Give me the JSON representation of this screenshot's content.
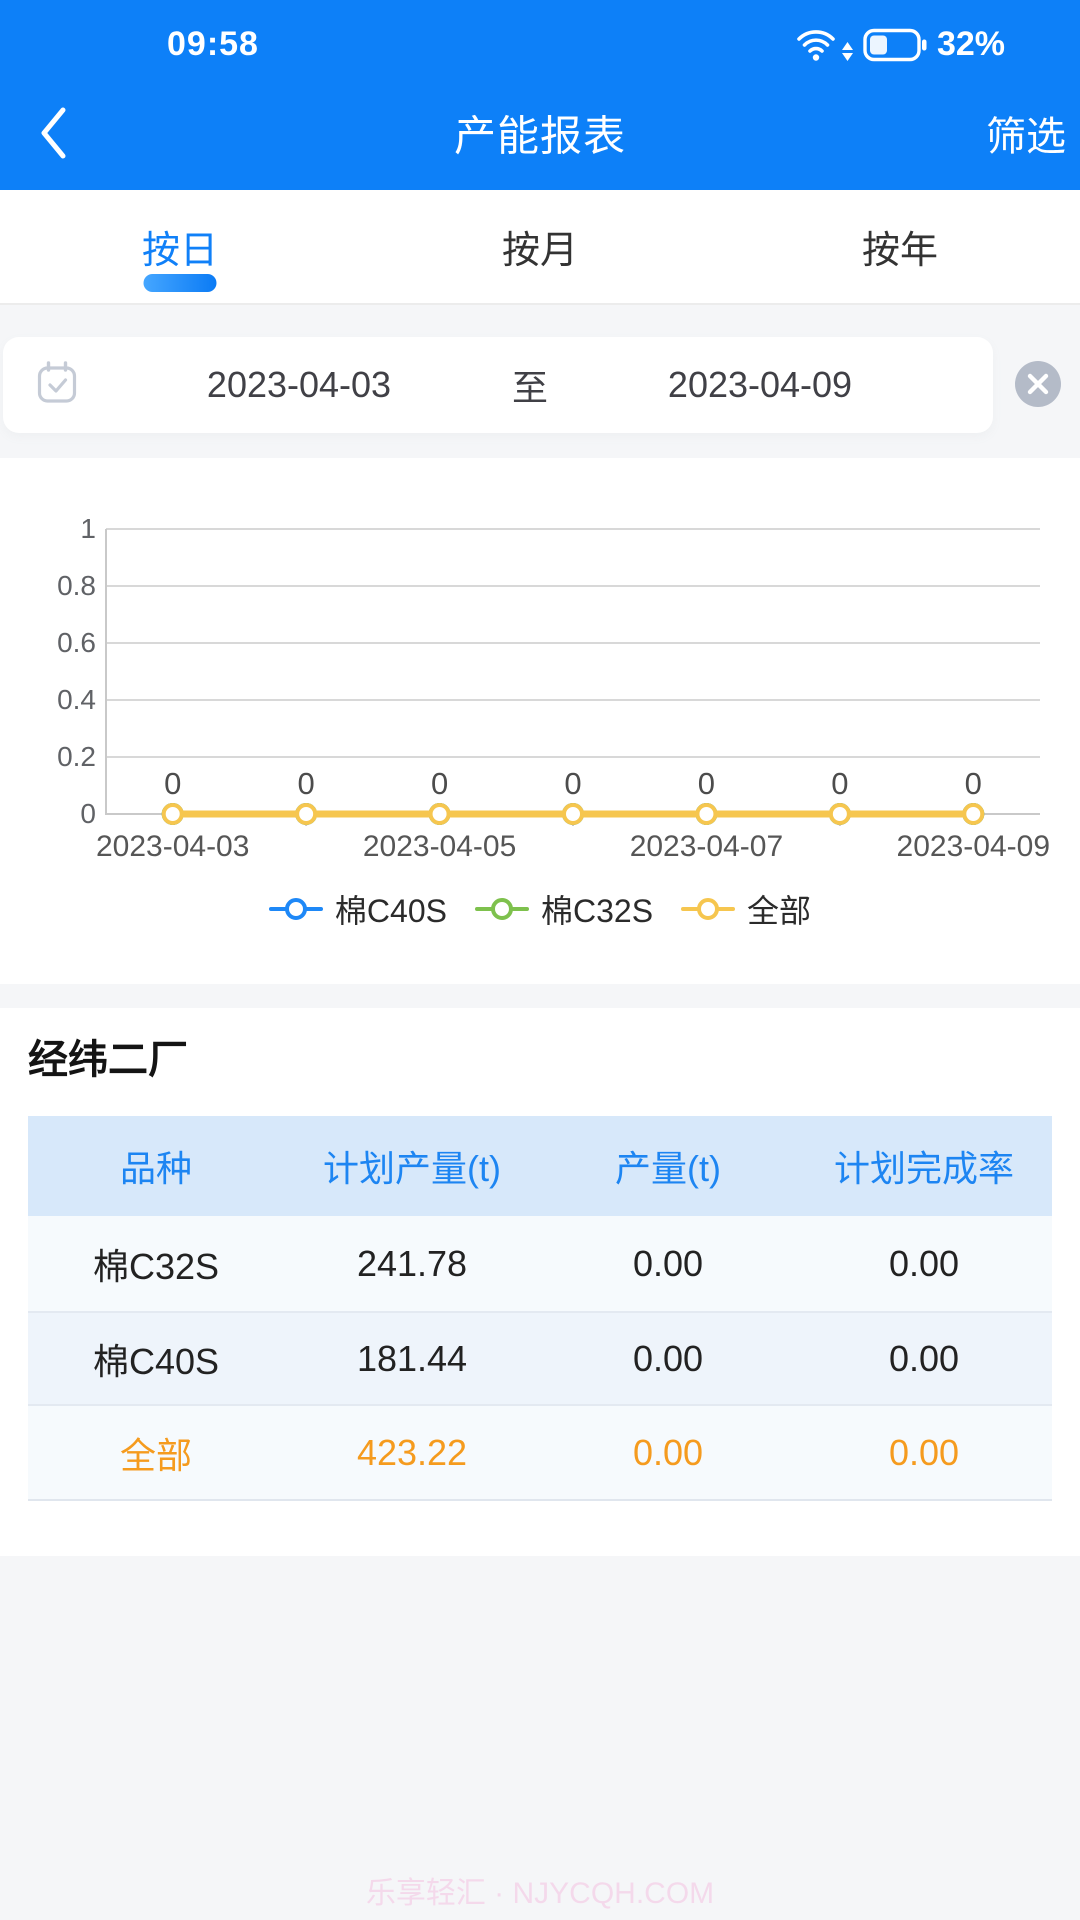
{
  "status_bar": {
    "time": "09:58",
    "battery_percent": "32%"
  },
  "nav": {
    "title": "产能报表",
    "filter": "筛选"
  },
  "tabs": {
    "day": "按日",
    "month": "按月",
    "year": "按年"
  },
  "date_filter": {
    "start": "2023-04-03",
    "to": "至",
    "end": "2023-04-09"
  },
  "chart_data": {
    "type": "line",
    "x": [
      "2023-04-03",
      "2023-04-04",
      "2023-04-05",
      "2023-04-06",
      "2023-04-07",
      "2023-04-08",
      "2023-04-09"
    ],
    "x_axis_labels_visible": [
      "2023-04-03",
      "2023-04-05",
      "2023-04-07",
      "2023-04-09"
    ],
    "y_ticks": [
      0,
      0.2,
      0.4,
      0.6,
      0.8,
      1
    ],
    "ylim": [
      0,
      1
    ],
    "grid": true,
    "legend_position": "bottom",
    "point_label": "0",
    "series": [
      {
        "name": "棉C40S",
        "color": "#1e88f7",
        "values": [
          0,
          0,
          0,
          0,
          0,
          0,
          0
        ]
      },
      {
        "name": "棉C32S",
        "color": "#7ec14d",
        "values": [
          0,
          0,
          0,
          0,
          0,
          0,
          0
        ]
      },
      {
        "name": "全部",
        "color": "#f6c64f",
        "values": [
          0,
          0,
          0,
          0,
          0,
          0,
          0
        ]
      }
    ]
  },
  "factory": {
    "title": "经纬二厂",
    "table": {
      "headers": [
        "品种",
        "计划产量(t)",
        "产量(t)",
        "计划完成率"
      ],
      "rows": [
        {
          "cells": [
            "棉C32S",
            "241.78",
            "0.00",
            "0.00"
          ],
          "highlight": false
        },
        {
          "cells": [
            "棉C40S",
            "181.44",
            "0.00",
            "0.00"
          ],
          "highlight": false
        },
        {
          "cells": [
            "全部",
            "423.22",
            "0.00",
            "0.00"
          ],
          "highlight": true
        }
      ]
    }
  },
  "watermark": "乐享轻汇 · NJYCQH.COM",
  "colors": {
    "accent_blue": "#0d80f8",
    "table_header_bg": "#d7e8fa",
    "table_header_text": "#1d85f2",
    "highlight_orange": "#f59b1e",
    "series_blue": "#1e88f7",
    "series_green": "#7ec14d",
    "series_yellow": "#f6c64f"
  }
}
